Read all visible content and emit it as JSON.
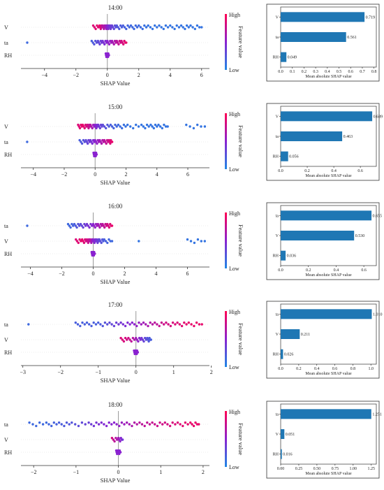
{
  "colors": {
    "high": "#ff0052",
    "mid": "#8a22d0",
    "low": "#1e88e5",
    "bar": "#1f77b4"
  },
  "colorbar": {
    "high": "High",
    "low": "Low",
    "label": "Feature value"
  },
  "charts": [
    {
      "title": "14:00",
      "type": "beeswarm",
      "features": [
        {
          "name": "V",
          "points": [
            [
              -0.9,
              0.85
            ],
            [
              -0.5,
              0.9
            ],
            [
              -0.3,
              0.7
            ],
            [
              -0.1,
              0.6
            ],
            [
              0,
              0.5
            ],
            [
              0.15,
              0.4
            ],
            [
              0.3,
              0.35
            ],
            [
              0.6,
              0.25
            ],
            [
              1.0,
              0.2
            ],
            [
              1.5,
              0.15
            ],
            [
              2.0,
              0.15
            ],
            [
              2.6,
              0.1
            ],
            [
              3.3,
              0.1
            ],
            [
              4.0,
              0.1
            ],
            [
              4.7,
              0.1
            ],
            [
              5.3,
              0.1
            ],
            [
              6.0,
              0.1
            ]
          ]
        },
        {
          "name": "ta",
          "points": [
            [
              -5.1,
              0.15
            ],
            [
              -1.0,
              0.2
            ],
            [
              -0.6,
              0.3
            ],
            [
              -0.3,
              0.4
            ],
            [
              0,
              0.5
            ],
            [
              0.3,
              0.6
            ],
            [
              0.6,
              0.7
            ],
            [
              0.9,
              0.8
            ],
            [
              1.2,
              0.9
            ]
          ]
        },
        {
          "name": "RH",
          "points": [
            [
              -0.1,
              0.5
            ],
            [
              0,
              0.5
            ],
            [
              0.1,
              0.5
            ]
          ]
        }
      ],
      "xticks": [
        -4,
        -2,
        0,
        2,
        4,
        6
      ],
      "xlim": [
        -5.5,
        6.5
      ],
      "xlabel": "SHAP Value",
      "bar": {
        "features": [
          "V",
          "ta",
          "RH"
        ],
        "values": [
          0.719,
          0.561,
          0.049
        ],
        "labels": [
          "0.719",
          "0.561",
          "0.049"
        ],
        "xticks": [
          0.0,
          0.1,
          0.2,
          0.3,
          0.4,
          0.5,
          0.6,
          0.7,
          0.8
        ],
        "tick_labels": [
          "0.0",
          "0.1",
          "0.2",
          "0.3",
          "0.4",
          "0.5",
          "0.6",
          "0.7",
          "0.8"
        ],
        "xmax": 0.82,
        "xlabel": "Mean absolute SHAP value"
      }
    },
    {
      "title": "15:00",
      "type": "beeswarm",
      "features": [
        {
          "name": "V",
          "points": [
            [
              -1.1,
              0.85
            ],
            [
              -0.8,
              0.9
            ],
            [
              -0.5,
              0.8
            ],
            [
              -0.3,
              0.7
            ],
            [
              0,
              0.5
            ],
            [
              0.2,
              0.4
            ],
            [
              0.5,
              0.3
            ],
            [
              1.0,
              0.2
            ],
            [
              1.5,
              0.15
            ],
            [
              2.1,
              0.1
            ],
            [
              3.0,
              0.1
            ],
            [
              3.6,
              0.1
            ],
            [
              4.1,
              0.1
            ],
            [
              4.7,
              0.1
            ],
            [
              5.9,
              0.1
            ],
            [
              7.1,
              0.1
            ]
          ]
        },
        {
          "name": "ta",
          "points": [
            [
              -4.4,
              0.15
            ],
            [
              -1.0,
              0.2
            ],
            [
              -0.6,
              0.3
            ],
            [
              -0.3,
              0.4
            ],
            [
              0,
              0.5
            ],
            [
              0.3,
              0.6
            ],
            [
              0.6,
              0.7
            ],
            [
              0.9,
              0.8
            ],
            [
              1.1,
              0.9
            ]
          ]
        },
        {
          "name": "RH",
          "points": [
            [
              -0.1,
              0.5
            ],
            [
              0,
              0.5
            ],
            [
              0.1,
              0.5
            ]
          ]
        }
      ],
      "xticks": [
        -4,
        -2,
        0,
        2,
        4,
        6
      ],
      "xlim": [
        -4.8,
        7.4
      ],
      "xlabel": "SHAP Value",
      "bar": {
        "features": [
          "V",
          "ta",
          "RH"
        ],
        "values": [
          0.689,
          0.463,
          0.056
        ],
        "labels": [
          "0.689",
          "0.463",
          "0.056"
        ],
        "xticks": [
          0.0,
          0.2,
          0.4,
          0.6
        ],
        "tick_labels": [
          "0.0",
          "0.2",
          "0.4",
          "0.6"
        ],
        "xmax": 0.72,
        "xlabel": "Mean absolute SHAP value"
      }
    },
    {
      "title": "16:00",
      "type": "beeswarm",
      "features": [
        {
          "name": "ta",
          "points": [
            [
              -4.2,
              0.15
            ],
            [
              -1.6,
              0.15
            ],
            [
              -1.2,
              0.2
            ],
            [
              -0.8,
              0.3
            ],
            [
              -0.4,
              0.4
            ],
            [
              0,
              0.5
            ],
            [
              0.3,
              0.6
            ],
            [
              0.6,
              0.7
            ],
            [
              0.9,
              0.8
            ],
            [
              1.2,
              0.9
            ]
          ]
        },
        {
          "name": "V",
          "points": [
            [
              -1.1,
              0.85
            ],
            [
              -0.7,
              0.9
            ],
            [
              -0.4,
              0.8
            ],
            [
              -0.2,
              0.7
            ],
            [
              0,
              0.5
            ],
            [
              0.2,
              0.4
            ],
            [
              0.4,
              0.3
            ],
            [
              0.7,
              0.2
            ],
            [
              1.2,
              0.15
            ],
            [
              2.9,
              0.1
            ],
            [
              6.0,
              0.1
            ],
            [
              7.1,
              0.1
            ]
          ]
        },
        {
          "name": "RH",
          "points": [
            [
              -0.1,
              0.5
            ],
            [
              0,
              0.5
            ],
            [
              0.1,
              0.5
            ]
          ]
        }
      ],
      "xticks": [
        -4,
        -2,
        0,
        2,
        4,
        6
      ],
      "xlim": [
        -4.6,
        7.4
      ],
      "xlabel": "SHAP Value",
      "bar": {
        "features": [
          "ta",
          "V",
          "RH"
        ],
        "values": [
          0.655,
          0.53,
          0.036
        ],
        "labels": [
          "0.655",
          "0.530",
          "0.036"
        ],
        "xticks": [
          0.0,
          0.2,
          0.4,
          0.6
        ],
        "tick_labels": [
          "0.0",
          "0.2",
          "0.4",
          "0.6"
        ],
        "xmax": 0.69,
        "xlabel": "Mean absolute SHAP value"
      }
    },
    {
      "title": "17:00",
      "type": "beeswarm",
      "features": [
        {
          "name": "ta",
          "points": [
            [
              -2.85,
              0.15
            ],
            [
              -1.6,
              0.2
            ],
            [
              -1.3,
              0.2
            ],
            [
              -1.0,
              0.2
            ],
            [
              -0.7,
              0.3
            ],
            [
              -0.4,
              0.4
            ],
            [
              -0.1,
              0.5
            ],
            [
              0.2,
              0.6
            ],
            [
              0.5,
              0.7
            ],
            [
              0.8,
              0.8
            ],
            [
              1.1,
              0.85
            ],
            [
              1.4,
              0.9
            ],
            [
              1.75,
              0.9
            ]
          ]
        },
        {
          "name": "V",
          "points": [
            [
              -0.4,
              0.85
            ],
            [
              -0.2,
              0.8
            ],
            [
              0,
              0.6
            ],
            [
              0.15,
              0.4
            ],
            [
              0.3,
              0.25
            ],
            [
              0.4,
              0.2
            ]
          ]
        },
        {
          "name": "RH",
          "points": [
            [
              -0.05,
              0.5
            ],
            [
              0,
              0.5
            ],
            [
              0.05,
              0.5
            ]
          ]
        }
      ],
      "xticks": [
        -3,
        -2,
        -1,
        0,
        1,
        2
      ],
      "xlim": [
        -3.05,
        1.95
      ],
      "xlabel": "SHAP Value",
      "bar": {
        "features": [
          "ta",
          "V",
          "RH"
        ],
        "values": [
          1.01,
          0.211,
          0.026
        ],
        "labels": [
          "1.010",
          "0.211",
          "0.026"
        ],
        "xticks": [
          0.0,
          0.2,
          0.4,
          0.6,
          0.8,
          1.0
        ],
        "tick_labels": [
          "0.0",
          "0.2",
          "0.4",
          "0.6",
          "0.8",
          "1.0"
        ],
        "xmax": 1.06,
        "xlabel": "Mean absolute SHAP value"
      }
    },
    {
      "title": "18:00",
      "type": "beeswarm",
      "features": [
        {
          "name": "ta",
          "points": [
            [
              -2.1,
              0.15
            ],
            [
              -1.7,
              0.15
            ],
            [
              -1.4,
              0.2
            ],
            [
              -1.1,
              0.25
            ],
            [
              -0.7,
              0.35
            ],
            [
              -0.4,
              0.45
            ],
            [
              -0.1,
              0.5
            ],
            [
              0.2,
              0.6
            ],
            [
              0.5,
              0.7
            ],
            [
              0.8,
              0.75
            ],
            [
              1.1,
              0.8
            ],
            [
              1.4,
              0.85
            ],
            [
              1.7,
              0.9
            ],
            [
              1.9,
              0.9
            ]
          ]
        },
        {
          "name": "V",
          "points": [
            [
              -0.15,
              0.8
            ],
            [
              0,
              0.6
            ],
            [
              0.1,
              0.4
            ]
          ]
        },
        {
          "name": "RH",
          "points": [
            [
              -0.05,
              0.5
            ],
            [
              0,
              0.5
            ],
            [
              0.05,
              0.5
            ]
          ]
        }
      ],
      "xticks": [
        -2,
        -1,
        0,
        1,
        2
      ],
      "xlim": [
        -2.3,
        2.15
      ],
      "xlabel": "SHAP Value",
      "bar": {
        "features": [
          "ta",
          "V",
          "RH"
        ],
        "values": [
          1.251,
          0.051,
          0.016
        ],
        "labels": [
          "1.251",
          "0.051",
          "0.016"
        ],
        "xticks": [
          0.0,
          0.25,
          0.5,
          0.75,
          1.0,
          1.25
        ],
        "tick_labels": [
          "0.00",
          "0.25",
          "0.50",
          "0.75",
          "1.00",
          "1.25"
        ],
        "xmax": 1.32,
        "xlabel": "Mean absolute SHAP value"
      }
    }
  ]
}
